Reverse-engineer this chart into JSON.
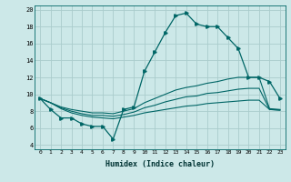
{
  "xlabel": "Humidex (Indice chaleur)",
  "bg_color": "#cce8e8",
  "grid_color": "#aacccc",
  "line_color": "#006666",
  "hours": [
    0,
    1,
    2,
    3,
    4,
    5,
    6,
    7,
    8,
    9,
    10,
    11,
    12,
    13,
    14,
    15,
    16,
    17,
    18,
    19,
    20,
    21,
    22,
    23
  ],
  "main_line": [
    9.5,
    8.2,
    7.2,
    7.2,
    6.5,
    6.2,
    6.2,
    4.7,
    8.2,
    8.5,
    12.7,
    15.0,
    17.3,
    19.3,
    19.6,
    18.3,
    18.0,
    18.0,
    16.7,
    15.4,
    12.0,
    12.0,
    11.5,
    9.5
  ],
  "upper_line": [
    9.5,
    9.0,
    8.5,
    8.2,
    8.0,
    7.8,
    7.8,
    7.7,
    8.0,
    8.3,
    9.0,
    9.5,
    10.0,
    10.5,
    10.8,
    11.0,
    11.3,
    11.5,
    11.8,
    12.0,
    12.0,
    12.0,
    8.3,
    8.2
  ],
  "lower_line": [
    9.5,
    9.0,
    8.3,
    7.8,
    7.5,
    7.3,
    7.2,
    7.1,
    7.3,
    7.5,
    7.8,
    8.0,
    8.2,
    8.4,
    8.6,
    8.7,
    8.9,
    9.0,
    9.1,
    9.2,
    9.3,
    9.3,
    8.2,
    8.1
  ],
  "mid_line": [
    9.5,
    9.0,
    8.4,
    8.0,
    7.7,
    7.5,
    7.5,
    7.4,
    7.6,
    7.9,
    8.4,
    8.7,
    9.1,
    9.4,
    9.7,
    9.8,
    10.1,
    10.2,
    10.4,
    10.6,
    10.7,
    10.7,
    8.2,
    8.15
  ],
  "ylim": [
    3.5,
    20.5
  ],
  "yticks": [
    4,
    6,
    8,
    10,
    12,
    14,
    16,
    18,
    20
  ],
  "xlim": [
    -0.5,
    23.5
  ],
  "xticks": [
    0,
    1,
    2,
    3,
    4,
    5,
    6,
    7,
    8,
    9,
    10,
    11,
    12,
    13,
    14,
    15,
    16,
    17,
    18,
    19,
    20,
    21,
    22,
    23
  ]
}
